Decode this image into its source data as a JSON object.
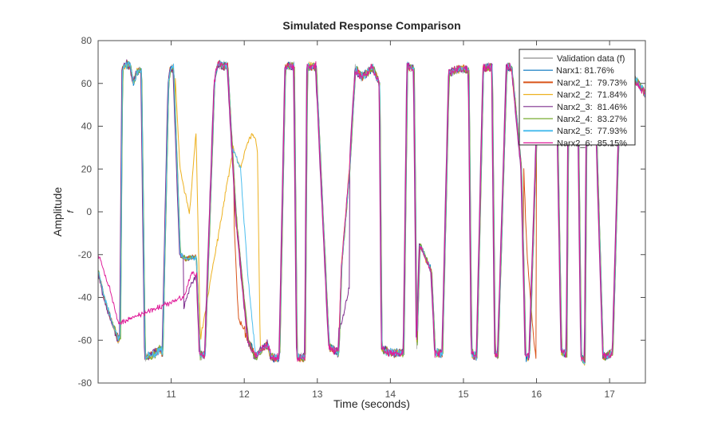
{
  "chart_data": {
    "type": "line",
    "title": "Simulated Response Comparison",
    "xlabel": "Time (seconds)",
    "ylabel": "Amplitude",
    "ylabel_sub": "f",
    "xlim": [
      10.0,
      17.49
    ],
    "ylim": [
      -80,
      80
    ],
    "xticks": [
      11,
      12,
      13,
      14,
      15,
      16,
      17
    ],
    "xtick_labels": [
      "11",
      "12",
      "13",
      "14",
      "15",
      "16",
      "17"
    ],
    "yticks": [
      -80,
      -60,
      -40,
      -20,
      0,
      20,
      40,
      60,
      80
    ],
    "ytick_labels": [
      "-80",
      "-60",
      "-40",
      "-20",
      "0",
      "20",
      "40",
      "60",
      "80"
    ],
    "grid": false,
    "legend_position": "top-right",
    "base_waveform": {
      "t": [
        10.0,
        10.08,
        10.19,
        10.28,
        10.3,
        10.33,
        10.41,
        10.44,
        10.48,
        10.52,
        10.59,
        10.64,
        10.74,
        10.85,
        10.88,
        10.96,
        10.99,
        11.03,
        11.12,
        11.2,
        11.34,
        11.39,
        11.46,
        11.59,
        11.63,
        11.77,
        11.88,
        11.99,
        12.05,
        12.11,
        12.15,
        12.21,
        12.32,
        12.37,
        12.48,
        12.56,
        12.68,
        12.72,
        12.83,
        12.86,
        12.98,
        13.14,
        13.16,
        13.24,
        13.29,
        13.33,
        13.44,
        13.49,
        13.52,
        13.6,
        13.69,
        13.75,
        13.85,
        13.88,
        14.01,
        14.18,
        14.23,
        14.32,
        14.36,
        14.4,
        14.56,
        14.61,
        14.71,
        14.8,
        14.97,
        15.07,
        15.11,
        15.18,
        15.27,
        15.39,
        15.43,
        15.47,
        15.59,
        15.66,
        15.79,
        15.85,
        15.9,
        16.03,
        16.27,
        16.34,
        16.41,
        16.44,
        16.56,
        16.61,
        16.66,
        16.69,
        16.79,
        16.91,
        17.04,
        17.15,
        17.28,
        17.39,
        17.49
      ],
      "y": [
        -28,
        -40,
        -52,
        -60,
        -58,
        68,
        69,
        68,
        60,
        65,
        66,
        -68,
        -67,
        -64,
        -66,
        60,
        67,
        67,
        -20,
        -22,
        -21,
        -67,
        -67,
        60,
        69,
        68,
        0,
        -40,
        -60,
        -65,
        -68,
        -65,
        -62,
        -68,
        -68,
        68,
        68,
        -68,
        -68,
        68,
        68,
        -50,
        -63,
        -65,
        -66,
        -25,
        20,
        50,
        67,
        63,
        65,
        68,
        60,
        -64,
        -66,
        -66,
        68,
        67,
        -63,
        -15,
        -28,
        -66,
        -66,
        65,
        67,
        66,
        -66,
        -68,
        67,
        68,
        -66,
        -67,
        68,
        67,
        20,
        -68,
        -68,
        68,
        68,
        -66,
        -66,
        68,
        68,
        -68,
        -70,
        68,
        68,
        -68,
        -66,
        68,
        65,
        60,
        55
      ]
    },
    "series": [
      {
        "name": "Validation data (f)",
        "label": "Validation data (f)",
        "color": "#b8b8b8",
        "fit_percent": null
      },
      {
        "name": "Narx1",
        "label": "Narx1: 81.76%",
        "color": "#0072bd",
        "fit_percent": 81.76
      },
      {
        "name": "Narx2_1",
        "label": "Narx2_1:  79.73%",
        "color": "#d95319",
        "fit_percent": 79.73
      },
      {
        "name": "Narx2_2",
        "label": "Narx2_2:  71.84%",
        "color": "#edb120",
        "fit_percent": 71.84
      },
      {
        "name": "Narx2_3",
        "label": "Narx2_3:  81.46%",
        "color": "#7e2f8e",
        "fit_percent": 81.46
      },
      {
        "name": "Narx2_4",
        "label": "Narx2_4:  83.27%",
        "color": "#77ac30",
        "fit_percent": 83.27
      },
      {
        "name": "Narx2_5",
        "label": "Narx2_5:  77.93%",
        "color": "#4dbeee",
        "fit_percent": 77.93
      },
      {
        "name": "Narx2_6",
        "label": "Narx2_6:  85.15%",
        "color": "#e01e9a",
        "fit_percent": 85.15
      }
    ],
    "deviations": {
      "Narx2_2": {
        "t": [
          11.05,
          11.12,
          11.25,
          11.34,
          11.4,
          11.85,
          11.95,
          12.05,
          12.12,
          12.18,
          12.22
        ],
        "y": [
          67,
          20,
          -1,
          38,
          -60,
          30,
          20,
          33,
          37,
          30,
          -68
        ]
      },
      "Narx2_5": {
        "t": [
          11.83,
          11.95,
          12.05,
          12.15
        ],
        "y": [
          30,
          20,
          -30,
          -66
        ]
      },
      "Narx2_1": {
        "t": [
          11.86,
          11.92,
          12.0,
          12.05,
          15.82,
          15.87,
          15.95,
          16.0
        ],
        "y": [
          -5,
          -50,
          -55,
          -60,
          25,
          -20,
          -55,
          -72
        ]
      },
      "Narx2_3": {
        "t": [
          11.17,
          11.26,
          11.34,
          13.3,
          13.38,
          13.44
        ],
        "y": [
          -45,
          -35,
          -30,
          -55,
          -45,
          -35
        ]
      },
      "Narx2_6": {
        "t": [
          10.0,
          10.05,
          10.15,
          10.28,
          11.17,
          11.28,
          11.34
        ],
        "y": [
          -20,
          -24,
          -35,
          -52,
          -40,
          -28,
          -30
        ]
      }
    }
  }
}
